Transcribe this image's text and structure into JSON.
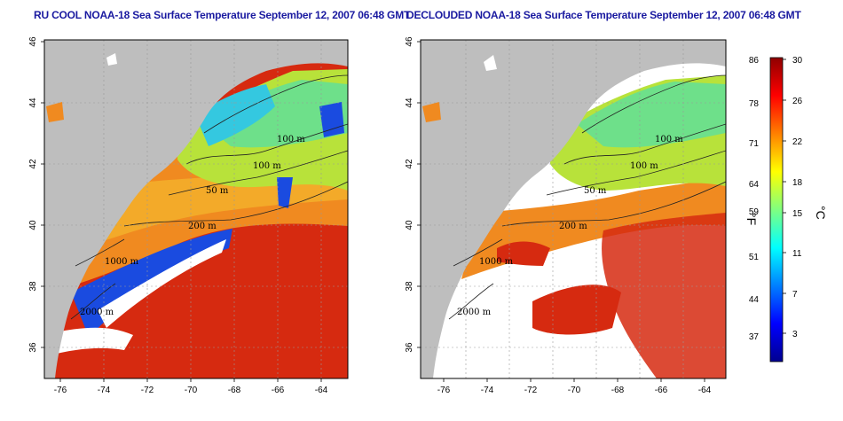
{
  "panels": [
    {
      "title": "RU COOL NOAA-18 Sea Surface Temperature September 12, 2007 06:48 GMT",
      "contour_labels": [
        "100 m",
        "100 m",
        "50 m",
        "200 m",
        "1000 m",
        "2000 m"
      ]
    },
    {
      "title": "DECLOUDED NOAA-18 Sea Surface Temperature September 12, 2007 06:48 GMT",
      "contour_labels": [
        "100 m",
        "100 m",
        "50 m",
        "200 m",
        "1000 m",
        "2000 m"
      ]
    }
  ],
  "axes": {
    "lon_ticks": [
      "-76",
      "-74",
      "-72",
      "-70",
      "-68",
      "-66",
      "-64"
    ],
    "lat_ticks": [
      "46",
      "44",
      "42",
      "40",
      "38",
      "36"
    ]
  },
  "colorbar": {
    "fahrenheit_ticks": [
      "86",
      "78",
      "71",
      "64",
      "59",
      "51",
      "44",
      "37"
    ],
    "celsius_ticks": [
      "30",
      "26",
      "22",
      "18",
      "15",
      "11",
      "7",
      "3"
    ],
    "fahrenheit_unit": "°F",
    "celsius_unit": "°C",
    "colors": [
      "#00008f",
      "#0000ff",
      "#0080ff",
      "#00ffff",
      "#80ff80",
      "#ffff00",
      "#ff8000",
      "#ff0000",
      "#8f0000"
    ]
  },
  "colors": {
    "land": "#bebebe",
    "cloud": "#ffffff",
    "title": "#1a1aa0"
  }
}
